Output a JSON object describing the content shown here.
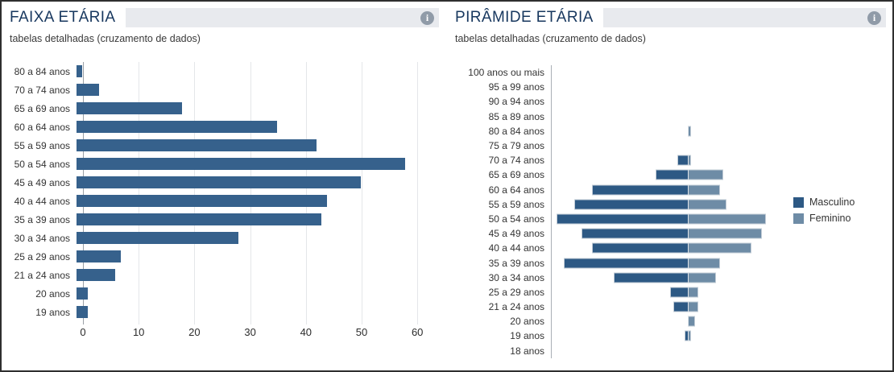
{
  "panels": [
    {
      "title": "FAIXA ETÁRIA",
      "subtitle": "tabelas detalhadas (cruzamento de dados)",
      "info_icon": "info-icon",
      "info_glyph": "i"
    },
    {
      "title": "PIRÂMIDE ETÁRIA",
      "subtitle": "tabelas detalhadas (cruzamento de dados)",
      "info_icon": "info-icon",
      "info_glyph": "i"
    }
  ],
  "colors": {
    "bar_primary": "#36618c",
    "masculino": "#2d5984",
    "feminino": "#6e8ca6",
    "title_text": "#17375e",
    "header_bar_bg": "#e8eaee",
    "info_icon_bg": "#909ba8",
    "axis_line": "#9aa0a6",
    "grid_line": "#e4e6e9",
    "label_text": "#333333"
  },
  "chart_data": [
    {
      "type": "bar",
      "orientation": "horizontal",
      "title": "FAIXA ETÁRIA",
      "categories": [
        "80 a 84 anos",
        "70 a 74 anos",
        "65 a 69 anos",
        "60 a 64 anos",
        "55 a 59 anos",
        "50 a 54 anos",
        "45 a 49 anos",
        "40 a 44 anos",
        "35 a 39 anos",
        "30 a 34 anos",
        "25 a 29 anos",
        "21 a 24 anos",
        "20 anos",
        "19 anos"
      ],
      "values": [
        1,
        4,
        19,
        36,
        43,
        59,
        51,
        45,
        44,
        29,
        8,
        7,
        2,
        2
      ],
      "xlabel": "",
      "ylabel": "",
      "xlim": [
        0,
        62.7
      ],
      "xticks": [
        0,
        10,
        20,
        30,
        40,
        50,
        60
      ],
      "grid": true,
      "legend": false
    },
    {
      "type": "bar",
      "subtype": "population-pyramid",
      "title": "PIRÂMIDE ETÁRIA",
      "categories": [
        "100 anos ou mais",
        "95 a 99 anos",
        "90 a 94 anos",
        "85 a 89 anos",
        "80 a 84 anos",
        "75 a 79 anos",
        "70 a 74 anos",
        "65 a 69 anos",
        "60 a 64 anos",
        "55 a 59 anos",
        "50 a 54 anos",
        "45 a 49 anos",
        "40 a 44 anos",
        "35 a 39 anos",
        "30 a 34 anos",
        "25 a 29 anos",
        "21 a 24 anos",
        "20 anos",
        "19 anos",
        "18 anos"
      ],
      "series": [
        {
          "name": "Masculino",
          "side": "left",
          "color": "#2d5984",
          "values": [
            0,
            0,
            0,
            0,
            0,
            0,
            3,
            9,
            27,
            32,
            37,
            30,
            27,
            35,
            21,
            5,
            4,
            0,
            1,
            0
          ]
        },
        {
          "name": "Feminino",
          "side": "right",
          "color": "#6e8ca6",
          "values": [
            0,
            0,
            0,
            0,
            1,
            0,
            1,
            10,
            9,
            11,
            22,
            21,
            18,
            9,
            8,
            3,
            3,
            2,
            1,
            0
          ]
        }
      ],
      "xlim_each_side": [
        0,
        38
      ],
      "grid": false,
      "legend_position": "right"
    }
  ]
}
